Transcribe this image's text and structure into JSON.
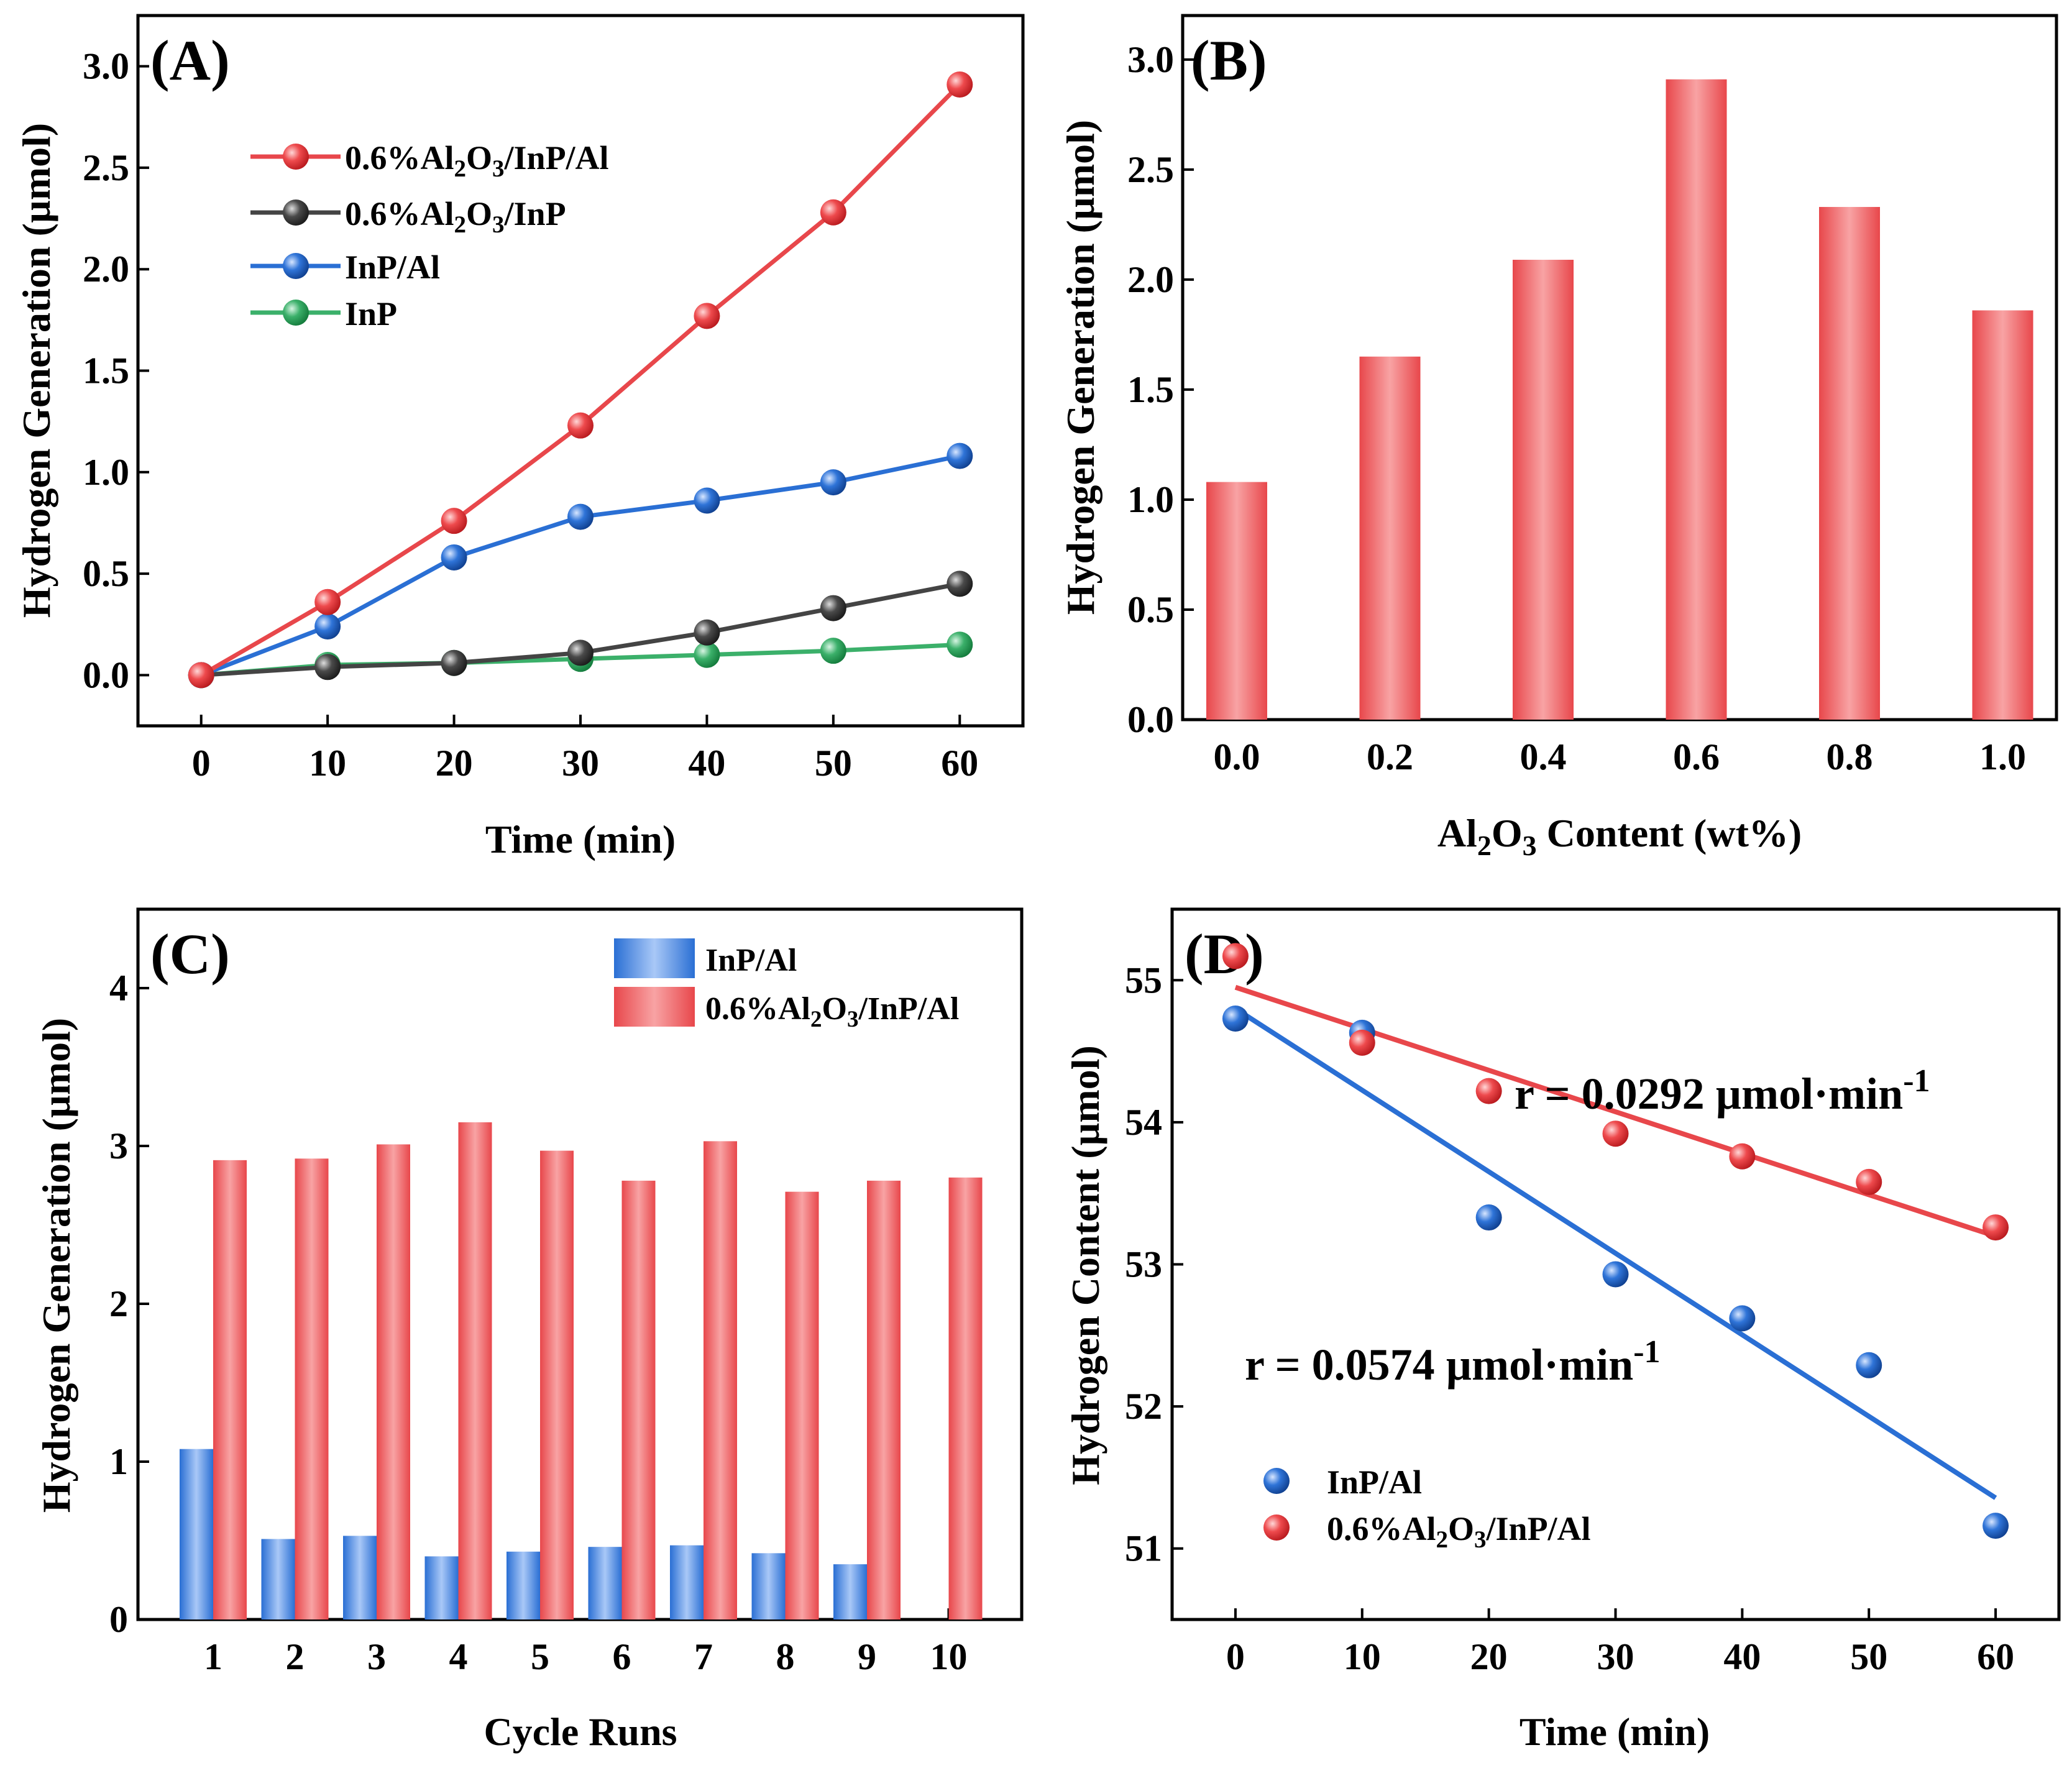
{
  "colors": {
    "red": "#e8474b",
    "red_light": "#f7a1a2",
    "black": "#444444",
    "blue": "#2a6fd4",
    "blue_light": "#9dc0f5",
    "green": "#3bb06a",
    "red_text": "#e8474b",
    "blue_text": "#2a6fd4"
  },
  "chart_data": [
    {
      "type": "line",
      "panel_label": "(A)",
      "xlabel": "Time (min)",
      "ylabel": "Hydrogen Generation (µmol)",
      "xlim": [
        -5,
        65
      ],
      "ylim": [
        -0.25,
        3.25
      ],
      "xticks": [
        "0",
        "10",
        "20",
        "30",
        "40",
        "50",
        "60"
      ],
      "yticks": [
        "0.0",
        "0.5",
        "1.0",
        "1.5",
        "2.0",
        "2.5",
        "3.0"
      ],
      "x": [
        0,
        10,
        20,
        30,
        40,
        50,
        60
      ],
      "legend_position": "top-left",
      "series": [
        {
          "name": "0.6%Al2O3/InP/Al",
          "label_base": "0.6%Al",
          "label_sub1": "2",
          "label_mid": "O",
          "label_sub2": "3",
          "label_tail": "/InP/Al",
          "color": "red",
          "values": [
            0,
            0.36,
            0.76,
            1.23,
            1.77,
            2.28,
            2.91
          ]
        },
        {
          "name": "0.6%Al2O3/InP",
          "label_base": "0.6%Al",
          "label_sub1": "2",
          "label_mid": "O",
          "label_sub2": "3",
          "label_tail": "/InP",
          "color": "black",
          "values": [
            0,
            0.04,
            0.06,
            0.11,
            0.21,
            0.33,
            0.45
          ]
        },
        {
          "name": "InP/Al",
          "label": "InP/Al",
          "color": "blue",
          "values": [
            0,
            0.24,
            0.58,
            0.78,
            0.86,
            0.95,
            1.08
          ]
        },
        {
          "name": "InP",
          "label": "InP",
          "color": "green",
          "values": [
            0,
            0.05,
            0.06,
            0.08,
            0.1,
            0.12,
            0.15
          ]
        }
      ]
    },
    {
      "type": "bar",
      "panel_label": "(B)",
      "xlabel_base": "Al",
      "xlabel_sub1": "2",
      "xlabel_mid": "O",
      "xlabel_sub2": "3",
      "xlabel_tail": " Content (wt%)",
      "ylabel": "Hydrogen Generation (µmol)",
      "ylim": [
        0,
        3.2
      ],
      "categories": [
        "0.0",
        "0.2",
        "0.4",
        "0.6",
        "0.8",
        "1.0"
      ],
      "yticks": [
        "0.0",
        "0.5",
        "1.0",
        "1.5",
        "2.0",
        "2.5",
        "3.0"
      ],
      "values": [
        1.08,
        1.65,
        2.09,
        2.91,
        2.33,
        1.86
      ]
    },
    {
      "type": "bar",
      "panel_label": "(C)",
      "xlabel": "Cycle Runs",
      "ylabel": "Hydrogen Generation (µmol)",
      "ylim": [
        0,
        4.5
      ],
      "categories": [
        "1",
        "2",
        "3",
        "4",
        "5",
        "6",
        "7",
        "8",
        "9",
        "10"
      ],
      "yticks": [
        "0",
        "1",
        "2",
        "3",
        "4"
      ],
      "legend_position": "top-right",
      "series": [
        {
          "name": "InP/Al",
          "label": "InP/Al",
          "color": "blue",
          "values": [
            1.08,
            0.51,
            0.53,
            0.4,
            0.43,
            0.46,
            0.47,
            0.42,
            0.35,
            null
          ]
        },
        {
          "name": "0.6%Al2O3/InP/Al",
          "label_base": "0.6%Al",
          "label_sub1": "2",
          "label_mid": "O",
          "label_sub2": "3",
          "label_tail": "/InP/Al",
          "color": "red",
          "values": [
            2.91,
            2.92,
            3.01,
            3.15,
            2.97,
            2.78,
            3.03,
            2.71,
            2.78,
            2.8
          ]
        }
      ]
    },
    {
      "type": "scatter",
      "panel_label": "(D)",
      "xlabel": "Time (min)",
      "ylabel": "Hydrogen Content (µmol)",
      "xlim": [
        -5,
        65
      ],
      "ylim": [
        50.5,
        55.5
      ],
      "xticks": [
        "0",
        "10",
        "20",
        "30",
        "40",
        "50",
        "60"
      ],
      "yticks": [
        "51",
        "52",
        "53",
        "54",
        "55"
      ],
      "x": [
        0,
        10,
        20,
        30,
        40,
        50,
        60
      ],
      "legend_position": "bottom-left",
      "series": [
        {
          "name": "InP/Al",
          "label": "InP/Al",
          "color": "blue",
          "values": [
            54.73,
            54.63,
            53.33,
            52.93,
            52.62,
            52.29,
            51.16
          ],
          "fit": {
            "y0": 54.8,
            "slope": -0.0574
          }
        },
        {
          "name": "0.6%Al2O3/InP/Al",
          "label_base": "0.6%Al",
          "label_sub1": "2",
          "label_mid": "O",
          "label_sub2": "3",
          "label_tail": "/InP/Al",
          "color": "red",
          "values": [
            55.17,
            54.56,
            54.22,
            53.92,
            53.76,
            53.58,
            53.26
          ],
          "fit": {
            "y0": 54.95,
            "slope": -0.0292
          }
        }
      ],
      "annotations": [
        {
          "name": "red-rate",
          "base": "r = 0.0292 µmol·min",
          "sup": "-1",
          "color": "red_text"
        },
        {
          "name": "blue-rate",
          "base": "r = 0.0574 µmol·min",
          "sup": "-1",
          "color": "blue_text"
        }
      ]
    }
  ]
}
